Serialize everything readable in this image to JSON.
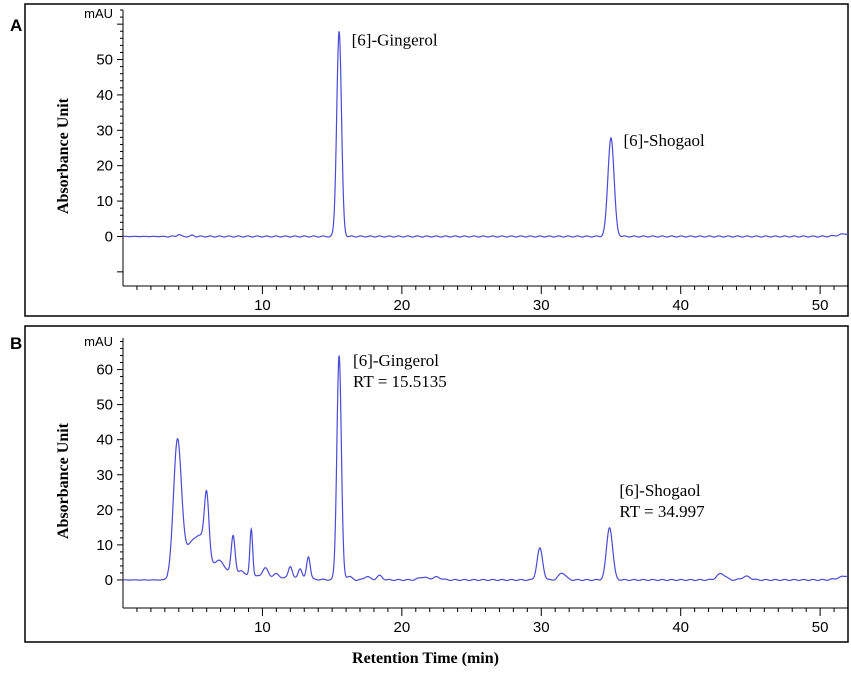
{
  "figure": {
    "xlabel": "Retention Time (min)"
  },
  "chart_data": [
    {
      "type": "line",
      "panel": "A",
      "yunit": "mAU",
      "ylabel": "Absorbance Unit",
      "xlim": [
        0,
        52
      ],
      "ylim": [
        -14,
        64
      ],
      "xticks": [
        10,
        20,
        30,
        40,
        50
      ],
      "yticks": [
        0,
        10,
        20,
        30,
        40,
        50
      ],
      "line_color": "#4a4ad6",
      "baseline": 0,
      "peaks": [
        {
          "x": 4.0,
          "y": 0.6,
          "w": 0.12
        },
        {
          "x": 5.0,
          "y": 0.3,
          "w": 0.12
        },
        {
          "x": 15.5,
          "y": 58,
          "w": 0.17
        },
        {
          "x": 35.0,
          "y": 28,
          "w": 0.22
        },
        {
          "x": 52.0,
          "y": 0.8,
          "w": 0.6
        }
      ],
      "annotations": [
        {
          "x": 16.4,
          "y": 54,
          "lines": [
            "[6]-Gingerol"
          ]
        },
        {
          "x": 35.9,
          "y": 25.5,
          "lines": [
            "[6]-Shogaol"
          ]
        }
      ]
    },
    {
      "type": "line",
      "panel": "B",
      "yunit": "mAU",
      "ylabel": "Absorbance Unit",
      "xlim": [
        0,
        52
      ],
      "ylim": [
        -8,
        69
      ],
      "xticks": [
        10,
        20,
        30,
        40,
        50
      ],
      "yticks": [
        0,
        10,
        20,
        30,
        40,
        50,
        60
      ],
      "line_color": "#4a4ad6",
      "baseline": 0,
      "peaks": [
        {
          "x": 3.9,
          "y": 38,
          "w": 0.28
        },
        {
          "x": 4.7,
          "y": 7,
          "w": 0.5
        },
        {
          "x": 5.6,
          "y": 10,
          "w": 0.5
        },
        {
          "x": 6.0,
          "y": 17,
          "w": 0.16
        },
        {
          "x": 6.8,
          "y": 3,
          "w": 0.3
        },
        {
          "x": 7.2,
          "y": 2,
          "w": 0.3
        },
        {
          "x": 7.9,
          "y": 11.5,
          "w": 0.14
        },
        {
          "x": 8.5,
          "y": 1.5,
          "w": 0.2
        },
        {
          "x": 9.2,
          "y": 13.5,
          "w": 0.1
        },
        {
          "x": 10.2,
          "y": 2.5,
          "w": 0.2
        },
        {
          "x": 11.0,
          "y": 1.0,
          "w": 0.2
        },
        {
          "x": 12.0,
          "y": 3.5,
          "w": 0.14
        },
        {
          "x": 12.7,
          "y": 3.0,
          "w": 0.14
        },
        {
          "x": 13.3,
          "y": 6.5,
          "w": 0.13
        },
        {
          "x": 15.5,
          "y": 64,
          "w": 0.16
        },
        {
          "x": 16.2,
          "y": 1.0,
          "w": 0.2
        },
        {
          "x": 17.5,
          "y": 1.0,
          "w": 0.2
        },
        {
          "x": 18.4,
          "y": 1.2,
          "w": 0.2
        },
        {
          "x": 21.5,
          "y": 0.8,
          "w": 0.3
        },
        {
          "x": 22.5,
          "y": 0.8,
          "w": 0.3
        },
        {
          "x": 29.9,
          "y": 9.0,
          "w": 0.2
        },
        {
          "x": 31.5,
          "y": 2.0,
          "w": 0.25
        },
        {
          "x": 34.9,
          "y": 15.0,
          "w": 0.22
        },
        {
          "x": 42.9,
          "y": 1.8,
          "w": 0.3
        },
        {
          "x": 44.7,
          "y": 1.0,
          "w": 0.3
        },
        {
          "x": 52.0,
          "y": 1.2,
          "w": 0.6
        }
      ],
      "annotations": [
        {
          "x": 16.5,
          "y": 61,
          "lines": [
            "[6]-Gingerol",
            "RT = 15.5135"
          ]
        },
        {
          "x": 35.6,
          "y": 24,
          "lines": [
            "[6]-Shogaol",
            "RT = 34.997"
          ]
        }
      ]
    }
  ]
}
